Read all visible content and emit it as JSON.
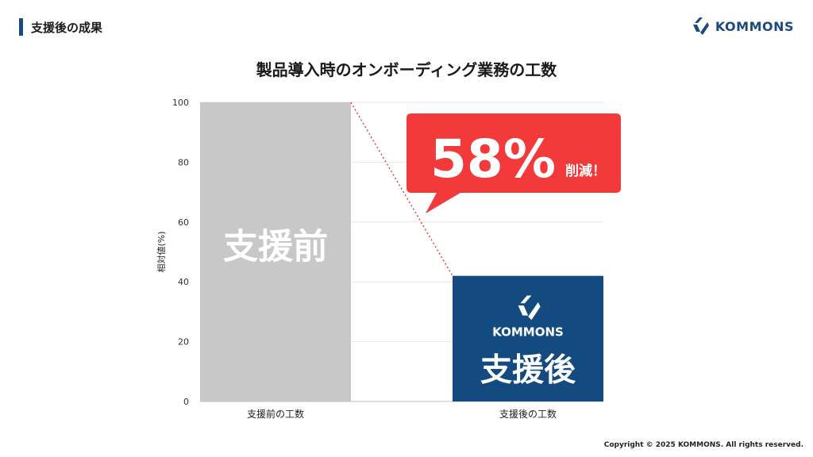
{
  "header": {
    "section_title": "支援後の成果"
  },
  "brand": {
    "name": "KOMMONS",
    "color": "#1a4a80"
  },
  "chart_data": {
    "type": "bar",
    "title": "製品導入時のオンボーディング業務の工数",
    "ylabel": "相対値(%)",
    "xlabel": "",
    "ylim": [
      0,
      100
    ],
    "yticks": [
      0,
      20,
      40,
      60,
      80,
      100
    ],
    "grid": true,
    "categories": [
      "支援前の工数",
      "支援後の工数"
    ],
    "values": [
      100,
      42
    ],
    "bar_labels": [
      "支援前",
      "支援後"
    ],
    "bar_colors": [
      "#c8c8c8",
      "#134b80"
    ],
    "callout": {
      "value": "58%",
      "text": "削減！",
      "color": "#f23a3a"
    }
  },
  "footer": {
    "copyright": "Copyright © 2025 KOMMONS. All rights reserved."
  }
}
